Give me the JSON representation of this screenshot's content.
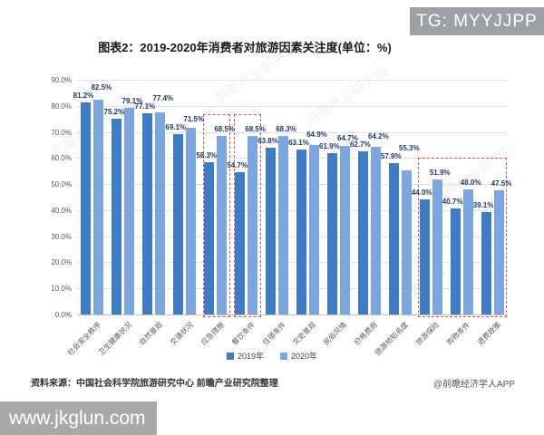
{
  "page": {
    "badge": "TG: MYYJJPP",
    "banner_url": "www.jkglun.com",
    "watermark_text": "前瞻产业研究院"
  },
  "footer": {
    "source": "资料来源：中国社会科学院旅游研究中心 前瞻产业研究院整理",
    "handle": "@前瞻经济学人APP"
  },
  "chart_data": {
    "type": "bar",
    "title": "图表2：2019-2020年消费者对旅游因素关注度(单位：%)",
    "categories": [
      "社会安全秩序",
      "卫生健康状况",
      "自然景观",
      "交通状况",
      "应急措施",
      "餐饮条件",
      "住宿条件",
      "文史景观",
      "民俗风情",
      "价格费用",
      "旅游地知名度",
      "旅游保险",
      "购物条件",
      "退费政策"
    ],
    "series": [
      {
        "name": "2019年",
        "color": "#3E7CC7",
        "values": [
          81.2,
          75.2,
          77.1,
          69.1,
          58.3,
          54.7,
          63.8,
          63.1,
          61.9,
          62.7,
          57.9,
          44.0,
          40.7,
          39.1
        ]
      },
      {
        "name": "2020年",
        "color": "#7CA6DF",
        "values": [
          82.5,
          79.1,
          77.4,
          71.5,
          68.5,
          68.5,
          68.3,
          64.9,
          64.7,
          64.2,
          55.3,
          51.9,
          48.0,
          47.5
        ]
      }
    ],
    "ylabel": "",
    "xlabel": "",
    "ylim": [
      0,
      90
    ],
    "ytick_step": 10,
    "ytick_format": "percent_one_decimal",
    "grid": true,
    "legend_position": "bottom",
    "highlight_boxes": [
      {
        "from": 4,
        "to": 4
      },
      {
        "from": 5,
        "to": 5
      },
      {
        "from": 11,
        "to": 13
      }
    ],
    "highlight_color": "#d9534f"
  }
}
